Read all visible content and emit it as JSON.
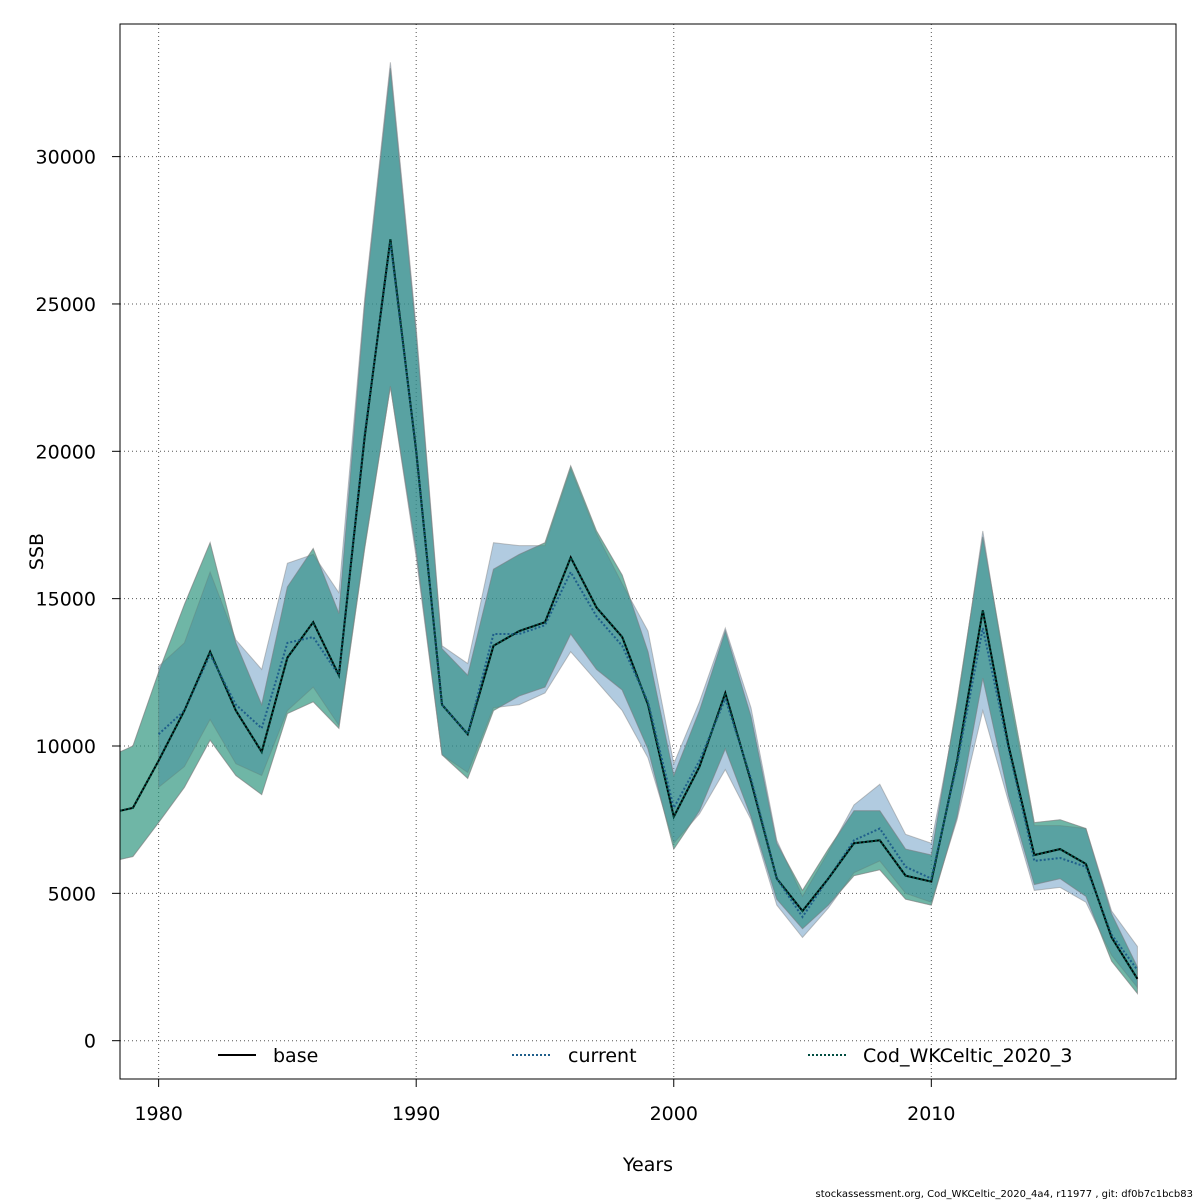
{
  "chart_data": {
    "type": "line",
    "title": "",
    "xlabel": "Years",
    "ylabel": "SSB",
    "xlim": [
      1978.5,
      2019.5
    ],
    "ylim": [
      -1300,
      34500
    ],
    "x_ticks": [
      1980,
      1990,
      2000,
      2010
    ],
    "y_ticks": [
      0,
      5000,
      10000,
      15000,
      20000,
      25000,
      30000
    ],
    "x_tick_labels": [
      "1980",
      "1990",
      "2000",
      "2010"
    ],
    "y_tick_labels": [
      "0",
      "5000",
      "10000",
      "15000",
      "20000",
      "25000",
      "30000"
    ],
    "grid": true,
    "legend_position": "bottom",
    "footer": "stockassessment.org, Cod_WKCeltic_2020_4a4, r11977 , git: df0b7c1bcb83",
    "series": [
      {
        "name": "base",
        "color": "#1b9e77",
        "line_color": "#000000",
        "line_style": "solid",
        "x": [
          1978.5,
          1979,
          1980,
          1981,
          1982,
          1983,
          1984,
          1985,
          1986,
          1987,
          1988,
          1989,
          1990,
          1991,
          1992,
          1993,
          1994,
          1995,
          1996,
          1997,
          1998,
          1999,
          2000,
          2001,
          2002,
          2003,
          2004,
          2005,
          2006,
          2007,
          2008,
          2009,
          2010,
          2011,
          2012,
          2013,
          2014,
          2015,
          2016,
          2017,
          2018
        ],
        "y": [
          7800,
          7900,
          9500,
          11200,
          13200,
          11200,
          9800,
          13000,
          14200,
          12400,
          20500,
          27200,
          20000,
          11400,
          10400,
          13400,
          13900,
          14200,
          16400,
          14700,
          13700,
          11400,
          7600,
          9300,
          11800,
          8800,
          5500,
          4400,
          5500,
          6700,
          6800,
          5600,
          5400,
          9500,
          14600,
          10000,
          6300,
          6500,
          6000,
          3500,
          2100
        ],
        "upper": [
          9800,
          10000,
          12500,
          14800,
          16900,
          13500,
          11400,
          15400,
          16700,
          14500,
          25000,
          33000,
          24000,
          13300,
          12400,
          16000,
          16500,
          16900,
          19500,
          17300,
          15800,
          13200,
          9000,
          11200,
          13900,
          11000,
          6700,
          5100,
          6500,
          7800,
          7800,
          6500,
          6300,
          11500,
          17100,
          12100,
          7400,
          7500,
          7200,
          4300,
          2500
        ],
        "lower": [
          6150,
          6250,
          7400,
          8600,
          10200,
          9000,
          8350,
          11100,
          11500,
          10600,
          16700,
          22200,
          16600,
          9700,
          8900,
          11200,
          11700,
          12000,
          13800,
          12600,
          11900,
          9900,
          6500,
          7800,
          9900,
          7600,
          4800,
          3800,
          4600,
          5600,
          5800,
          4800,
          4600,
          7600,
          12300,
          8300,
          5300,
          5500,
          4900,
          2700,
          1600
        ]
      },
      {
        "name": "current",
        "color": "#4682b4",
        "line_color": "#1f5f8b",
        "line_style": "dotted",
        "x": [
          1980,
          1981,
          1982,
          1983,
          1984,
          1985,
          1986,
          1987,
          1988,
          1989,
          1990,
          1991,
          1992,
          1993,
          1994,
          1995,
          1996,
          1997,
          1998,
          1999,
          2000,
          2001,
          2002,
          2003,
          2004,
          2005,
          2006,
          2007,
          2008,
          2009,
          2010,
          2011,
          2012,
          2013,
          2014,
          2015,
          2016,
          2017,
          2018
        ],
        "y": [
          10400,
          11200,
          13100,
          11400,
          10600,
          13500,
          13700,
          12400,
          20600,
          27100,
          20000,
          11400,
          10400,
          13800,
          13800,
          14100,
          15900,
          14400,
          13400,
          11500,
          7900,
          9500,
          11600,
          8900,
          5500,
          4200,
          5500,
          6800,
          7200,
          5900,
          5500,
          9400,
          14000,
          9900,
          6100,
          6200,
          5900,
          3600,
          2400
        ],
        "upper": [
          12700,
          13500,
          15900,
          13600,
          12600,
          16200,
          16500,
          15200,
          25200,
          33200,
          24200,
          13400,
          12800,
          16900,
          16800,
          16800,
          19400,
          17200,
          15500,
          13900,
          9400,
          11500,
          14000,
          11300,
          6800,
          4900,
          6400,
          8000,
          8700,
          7000,
          6700,
          11300,
          17300,
          11800,
          7300,
          7300,
          7200,
          4400,
          3200
        ],
        "lower": [
          8600,
          9300,
          10900,
          9400,
          9000,
          11200,
          12000,
          10700,
          16800,
          22200,
          16400,
          9700,
          9100,
          11300,
          11400,
          11800,
          13200,
          12200,
          11200,
          9600,
          6700,
          7700,
          9200,
          7500,
          4600,
          3500,
          4500,
          5700,
          6100,
          5000,
          4700,
          7500,
          11200,
          8100,
          5100,
          5200,
          4700,
          2900,
          1800
        ]
      },
      {
        "name": "Cod_WKCeltic_2020_3",
        "color": "#2e8b7a",
        "line_color": "#004d40",
        "line_style": "dotted",
        "x": [
          1978.5,
          1979,
          1980,
          1981,
          1982,
          1983,
          1984,
          1985,
          1986,
          1987,
          1988,
          1989,
          1990,
          1991,
          1992,
          1993,
          1994,
          1995,
          1996,
          1997,
          1998,
          1999,
          2000,
          2001,
          2002,
          2003,
          2004,
          2005,
          2006,
          2007,
          2008,
          2009,
          2010,
          2011,
          2012,
          2013,
          2014,
          2015,
          2016,
          2017,
          2018
        ],
        "y": [
          7800,
          7900,
          9500,
          11200,
          13200,
          11200,
          9800,
          13000,
          14200,
          12400,
          20500,
          27200,
          20000,
          11400,
          10400,
          13400,
          13900,
          14200,
          16400,
          14700,
          13700,
          11400,
          7600,
          9300,
          11800,
          8800,
          5500,
          4400,
          5500,
          6700,
          6800,
          5600,
          5400,
          9500,
          14600,
          10000,
          6300,
          6500,
          6000,
          3500,
          2100
        ],
        "upper": [
          9800,
          10000,
          12500,
          14800,
          16900,
          13500,
          11400,
          15400,
          16700,
          14500,
          25000,
          33000,
          24000,
          13300,
          12400,
          16000,
          16500,
          16900,
          19500,
          17300,
          15800,
          13200,
          9000,
          11200,
          13900,
          11000,
          6700,
          5100,
          6500,
          7800,
          7800,
          6500,
          6300,
          11500,
          17100,
          12100,
          7400,
          7500,
          7200,
          4300,
          2500
        ],
        "lower": [
          6150,
          6250,
          7400,
          8600,
          10200,
          9000,
          8350,
          11100,
          11500,
          10600,
          16700,
          22200,
          16600,
          9700,
          8900,
          11200,
          11700,
          12000,
          13800,
          12600,
          11900,
          9900,
          6500,
          7800,
          9900,
          7600,
          4800,
          3800,
          4600,
          5600,
          5800,
          4800,
          4600,
          7600,
          12300,
          8300,
          5300,
          5500,
          4900,
          2700,
          1600
        ]
      }
    ]
  }
}
